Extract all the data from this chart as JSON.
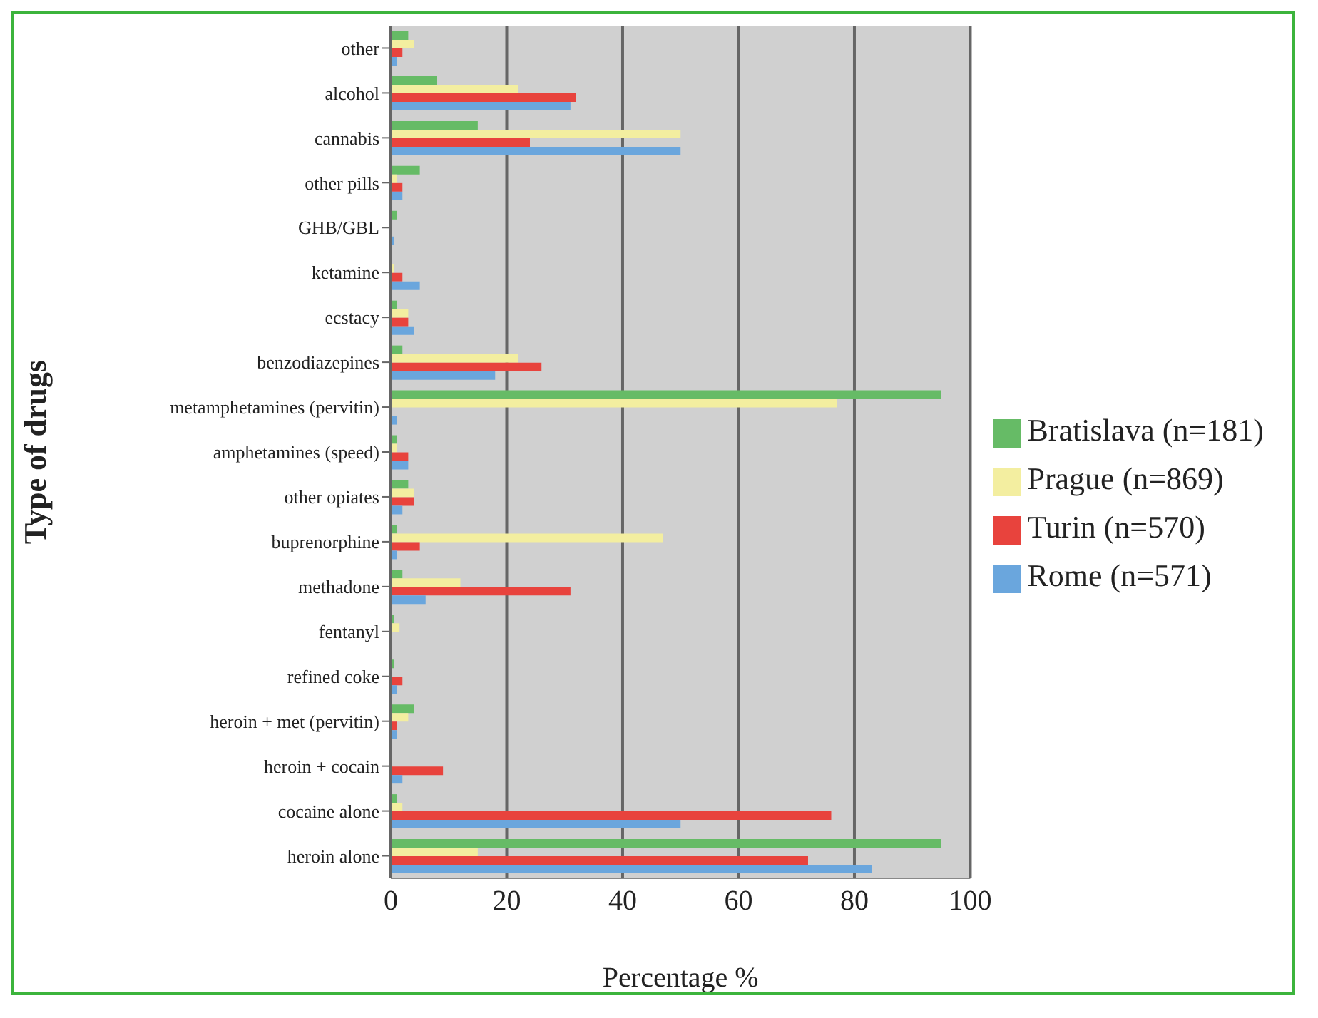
{
  "chart_data": {
    "type": "bar",
    "orientation": "horizontal",
    "xlabel": "Percentage %",
    "ylabel": "Type of drugs",
    "categories": [
      "other",
      "alcohol",
      "cannabis",
      "other pills",
      "GHB/GBL",
      "ketamine",
      "ecstacy",
      "benzodiazepines",
      "metamphetamines (pervitin)",
      "amphetamines (speed)",
      "other opiates",
      "buprenorphine",
      "methadone",
      "fentanyl",
      "refined coke",
      "heroin + met (pervitin)",
      "heroin + cocain",
      "cocaine alone",
      "heroin alone"
    ],
    "series": [
      {
        "name": "Bratislava (n=181)",
        "color": "#66bb66",
        "values": [
          3,
          8,
          15,
          5,
          1,
          0,
          1,
          2,
          95,
          1,
          3,
          1,
          2,
          0.5,
          0.5,
          4,
          0,
          1,
          95
        ]
      },
      {
        "name": "Prague (n=869)",
        "color": "#f3eea0",
        "values": [
          4,
          22,
          50,
          1,
          0,
          0.5,
          3,
          22,
          77,
          1,
          4,
          47,
          12,
          1.5,
          0,
          3,
          0,
          2,
          15
        ]
      },
      {
        "name": "Turin (n=570)",
        "color": "#e8433d",
        "values": [
          2,
          32,
          24,
          2,
          0,
          2,
          3,
          26,
          0,
          3,
          4,
          5,
          31,
          0,
          2,
          1,
          9,
          76,
          72
        ]
      },
      {
        "name": "Rome (n=571)",
        "color": "#6aa6dd",
        "values": [
          1,
          31,
          50,
          2,
          0.5,
          5,
          4,
          18,
          1,
          3,
          2,
          1,
          6,
          0,
          1,
          1,
          2,
          50,
          83
        ]
      }
    ],
    "xlim": [
      0,
      100
    ],
    "xticks": [
      0,
      20,
      40,
      60,
      80,
      100
    ],
    "grid": "x",
    "legend": "right"
  }
}
